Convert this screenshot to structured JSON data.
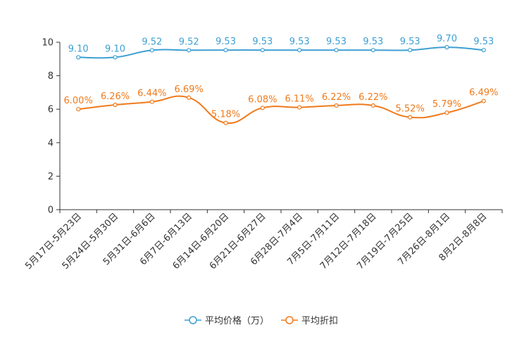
{
  "chart_data": {
    "type": "line",
    "categories": [
      "5月17日-5月23日",
      "5月24日-5月30日",
      "5月31日-6月6日",
      "6月7日-6月13日",
      "6月14日-6月20日",
      "6月21日-6月27日",
      "6月28日-7月4日",
      "7月5日-7月11日",
      "7月12日-7月18日",
      "7月19日-7月25日",
      "7月26日-8月1日",
      "8月2日-8月8日"
    ],
    "ylim": [
      0,
      10
    ],
    "yticks": [
      0,
      2,
      4,
      6,
      8,
      10
    ],
    "series": [
      {
        "name": "平均价格（万）",
        "color": "#3d9fd3",
        "values": [
          9.1,
          9.1,
          9.52,
          9.52,
          9.53,
          9.53,
          9.53,
          9.53,
          9.53,
          9.53,
          9.7,
          9.53
        ],
        "labels": [
          "9.10",
          "9.10",
          "9.52",
          "9.52",
          "9.53",
          "9.53",
          "9.53",
          "9.53",
          "9.53",
          "9.53",
          "9.70",
          "9.53"
        ]
      },
      {
        "name": "平均折扣",
        "color": "#f07a1b",
        "values": [
          6.0,
          6.26,
          6.44,
          6.69,
          5.18,
          6.08,
          6.11,
          6.22,
          6.22,
          5.52,
          5.79,
          6.49
        ],
        "labels": [
          "6.00%",
          "6.26%",
          "6.44%",
          "6.69%",
          "5.18%",
          "6.08%",
          "6.11%",
          "6.22%",
          "6.22%",
          "5.52%",
          "5.79%",
          "6.49%"
        ]
      }
    ],
    "legend_position": "bottom-center"
  }
}
